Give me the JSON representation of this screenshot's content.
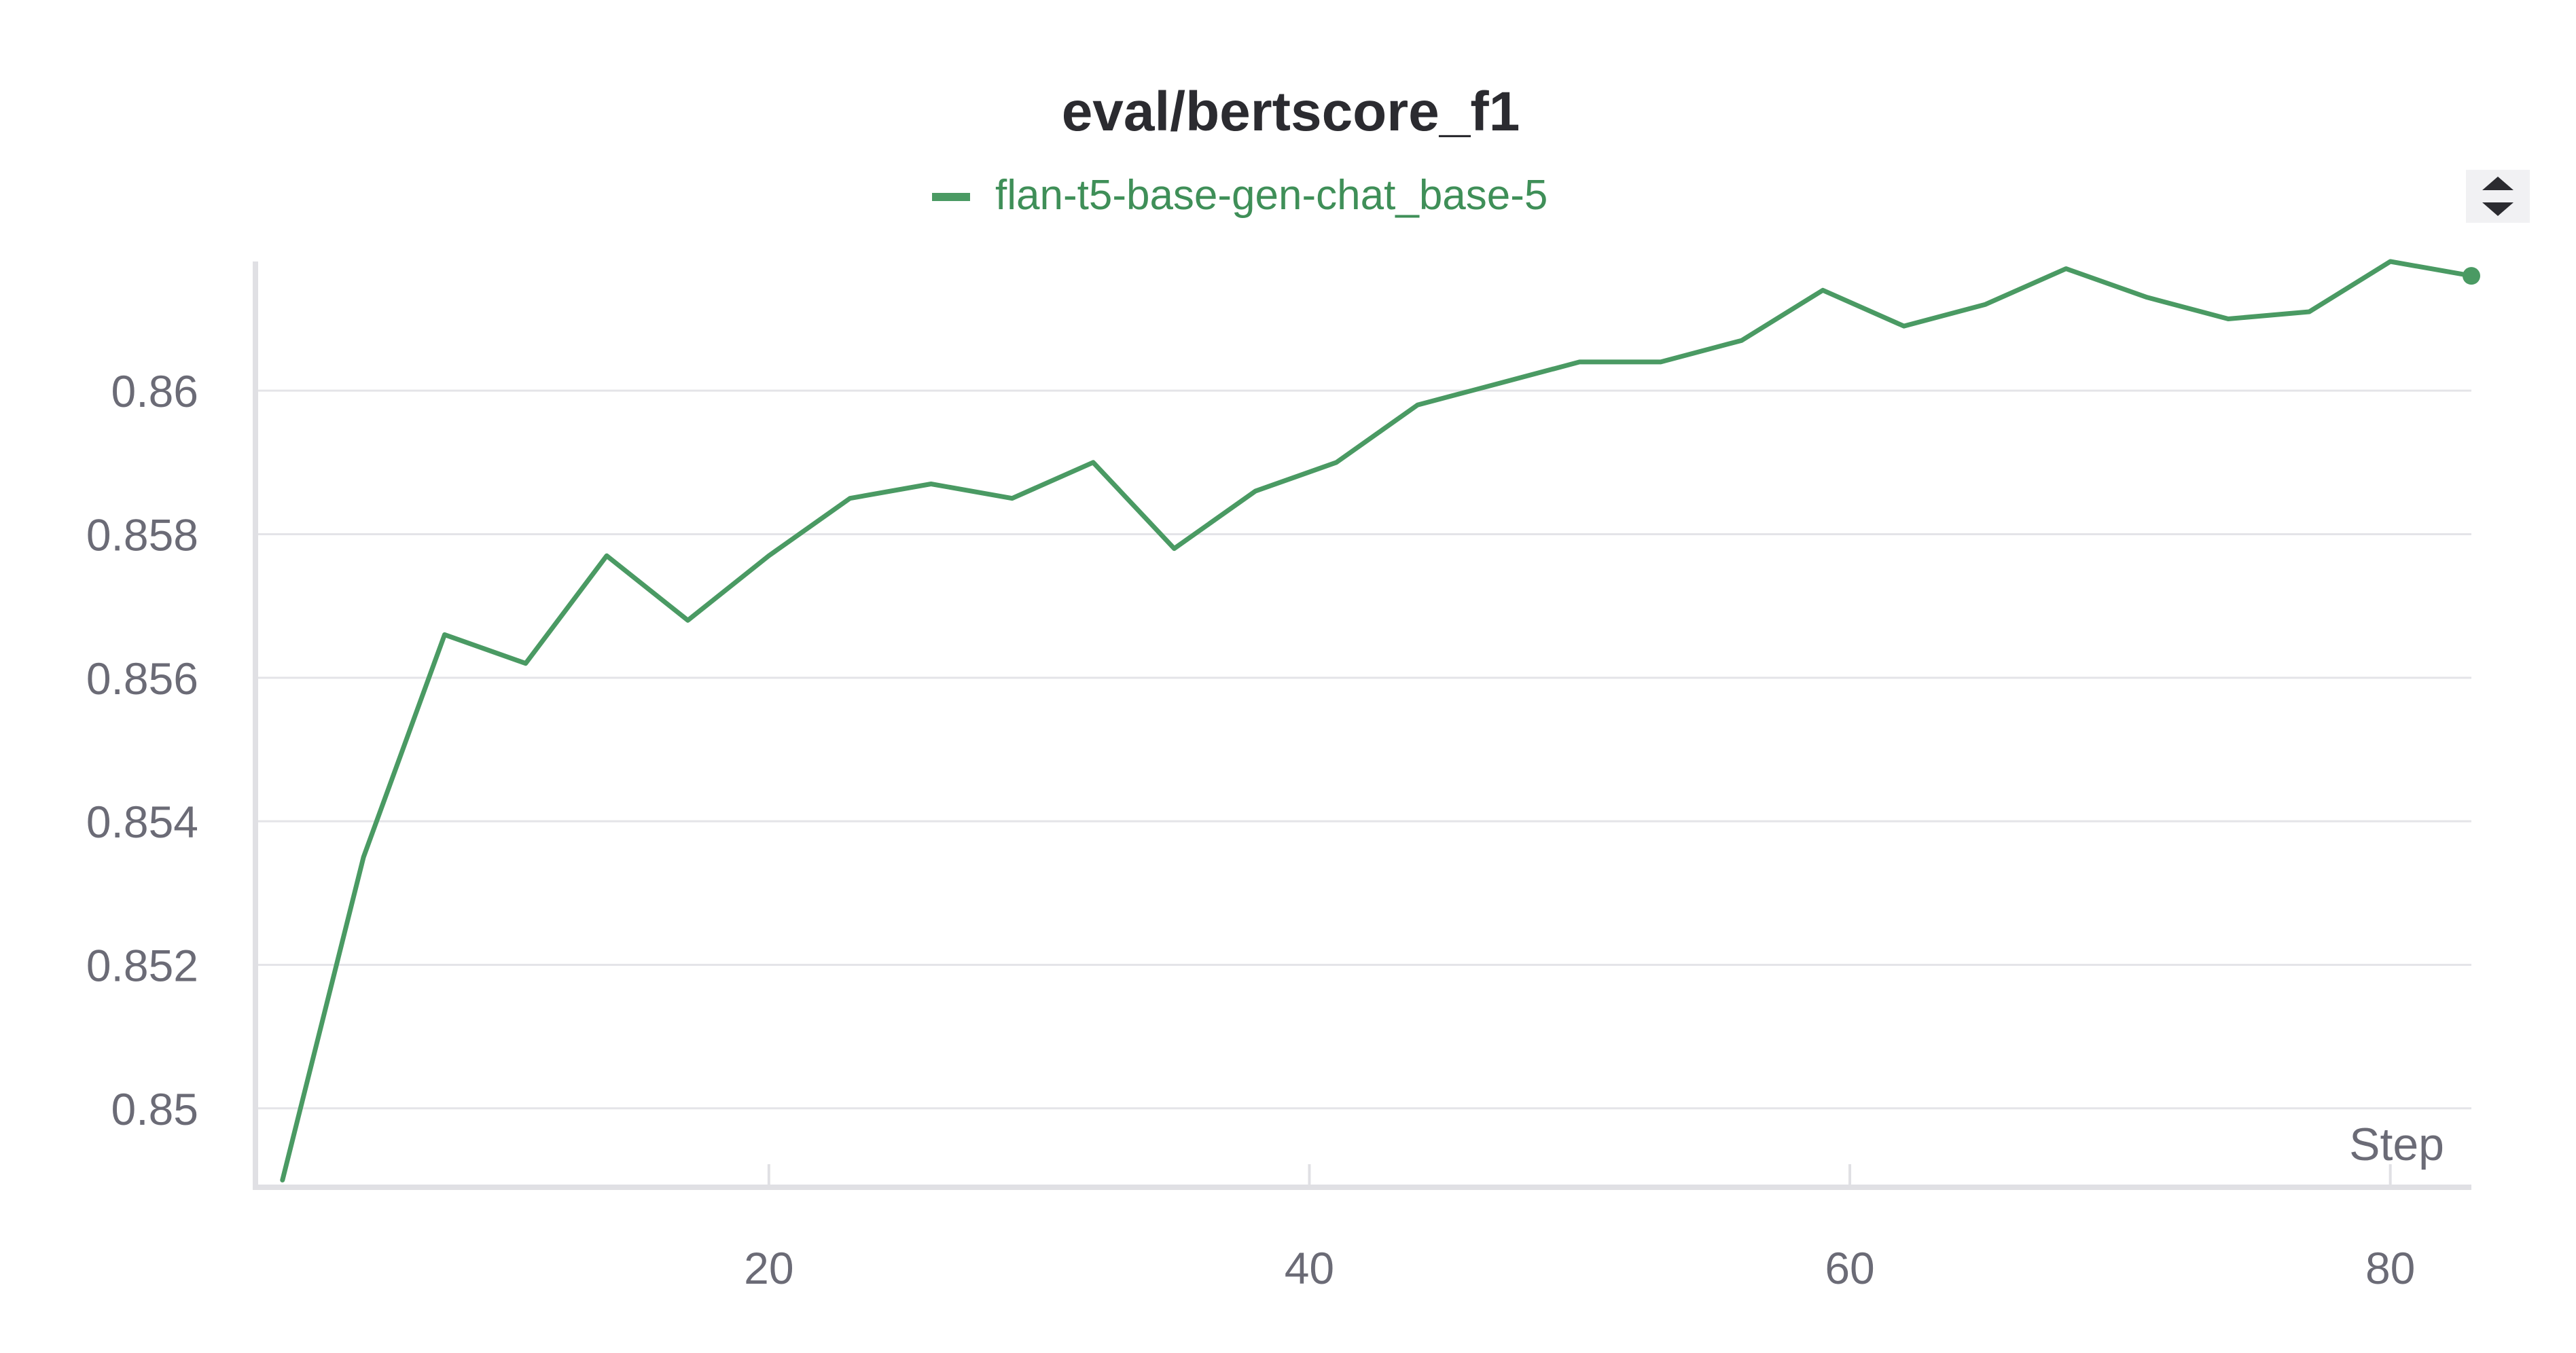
{
  "chart_data": {
    "type": "line",
    "title": "eval/bertscore_f1",
    "xlabel": "Step",
    "ylabel": "",
    "legend_position": "top-center",
    "grid": true,
    "xlim": [
      1,
      83
    ],
    "ylim": [
      0.8489,
      0.8618
    ],
    "x_ticks": [
      20,
      40,
      60,
      80
    ],
    "x_tick_labels": [
      "20",
      "40",
      "60",
      "80"
    ],
    "y_ticks": [
      0.85,
      0.852,
      0.854,
      0.856,
      0.858,
      0.86
    ],
    "y_tick_labels": [
      "0.85",
      "0.852",
      "0.854",
      "0.856",
      "0.858",
      "0.86"
    ],
    "series": [
      {
        "name": "flan-t5-base-gen-chat_base-5",
        "color": "#4a9a63",
        "x": [
          2,
          5,
          8,
          11,
          14,
          17,
          20,
          23,
          26,
          29,
          32,
          35,
          38,
          41,
          44,
          47,
          50,
          53,
          56,
          59,
          62,
          65,
          68,
          71,
          74,
          77,
          80,
          83
        ],
        "y": [
          0.849,
          0.8535,
          0.8566,
          0.8562,
          0.8577,
          0.8568,
          0.8577,
          0.8585,
          0.8587,
          0.8585,
          0.859,
          0.8578,
          0.8586,
          0.859,
          0.8598,
          0.8601,
          0.8604,
          0.8604,
          0.8607,
          0.8614,
          0.8609,
          0.8612,
          0.8617,
          0.8613,
          0.861,
          0.8611,
          0.8618,
          0.8616
        ]
      }
    ]
  },
  "controls": {
    "sort_icon": "sort-up-down-icon"
  }
}
